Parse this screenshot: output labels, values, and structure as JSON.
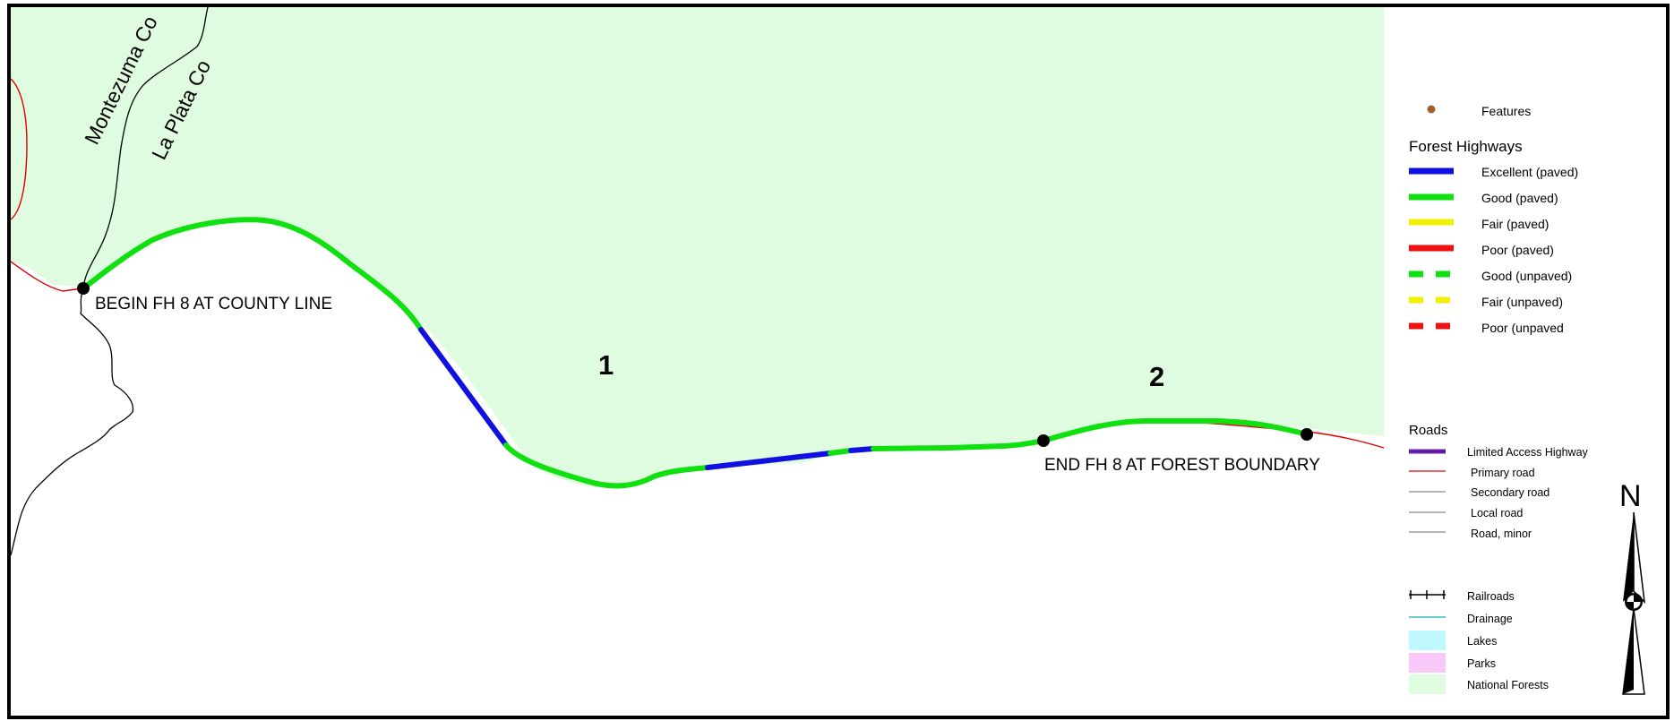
{
  "map": {
    "county_labels": [
      "Montezuma Co",
      "La Plata Co"
    ],
    "begin_label": "BEGIN FH 8 AT COUNTY LINE",
    "end_label": "END FH 8 AT FOREST BOUNDARY",
    "segment_labels": [
      "1",
      "2"
    ],
    "route_segments": [
      {
        "segment": "1",
        "condition": "Good (paved)"
      },
      {
        "segment": "1",
        "condition": "Excellent (paved)"
      },
      {
        "segment": "1",
        "condition": "Good (paved)"
      },
      {
        "segment": "1",
        "condition": "Excellent (paved)"
      },
      {
        "segment": "1",
        "condition": "Good (paved)"
      },
      {
        "segment": "1",
        "condition": "Excellent (paved)"
      },
      {
        "segment": "1",
        "condition": "Good (paved)"
      },
      {
        "segment": "2",
        "condition": "Good (paved)"
      }
    ]
  },
  "legend": {
    "features_label": "Features",
    "forest_highways_title": "Forest Highways",
    "forest_highways": [
      {
        "label": "Excellent (paved)",
        "color": "#1010e0",
        "style": "solid"
      },
      {
        "label": "Good (paved)",
        "color": "#10e010",
        "style": "solid"
      },
      {
        "label": "Fair (paved)",
        "color": "#f0f000",
        "style": "solid"
      },
      {
        "label": "Poor (paved)",
        "color": "#f01010",
        "style": "solid"
      },
      {
        "label": "Good (unpaved)",
        "color": "#10e010",
        "style": "dashed"
      },
      {
        "label": "Fair (unpaved)",
        "color": "#f0f000",
        "style": "dashed"
      },
      {
        "label": "Poor (unpaved",
        "color": "#f01010",
        "style": "dashed"
      }
    ],
    "roads_title": "Roads",
    "roads": [
      {
        "label": "Limited Access Highway",
        "icon": "limited-access-highway-symbol"
      },
      {
        "label": "Primary road",
        "color": "#e00000"
      },
      {
        "label": "Secondary road",
        "color": "#888888"
      },
      {
        "label": "Local road",
        "color": "#888888"
      },
      {
        "label": "Road, minor",
        "color": "#888888"
      }
    ],
    "other": [
      {
        "label": "Railroads",
        "icon": "railroad-symbol"
      },
      {
        "label": "Drainage",
        "color": "#30c0c0"
      },
      {
        "label": "Lakes",
        "color": "#c0f8ff"
      },
      {
        "label": "Parks",
        "color": "#f8c8f8"
      },
      {
        "label": "National Forests",
        "color": "#e0fce0"
      }
    ]
  },
  "north_arrow": {
    "label": "N",
    "icon": "north-arrow-icon"
  },
  "colors": {
    "national_forest": "#e0fce0",
    "excellent": "#1010e0",
    "good": "#10e010",
    "primary_road": "#e00000",
    "county_line": "#000000",
    "feature_point": "#a0602a"
  }
}
